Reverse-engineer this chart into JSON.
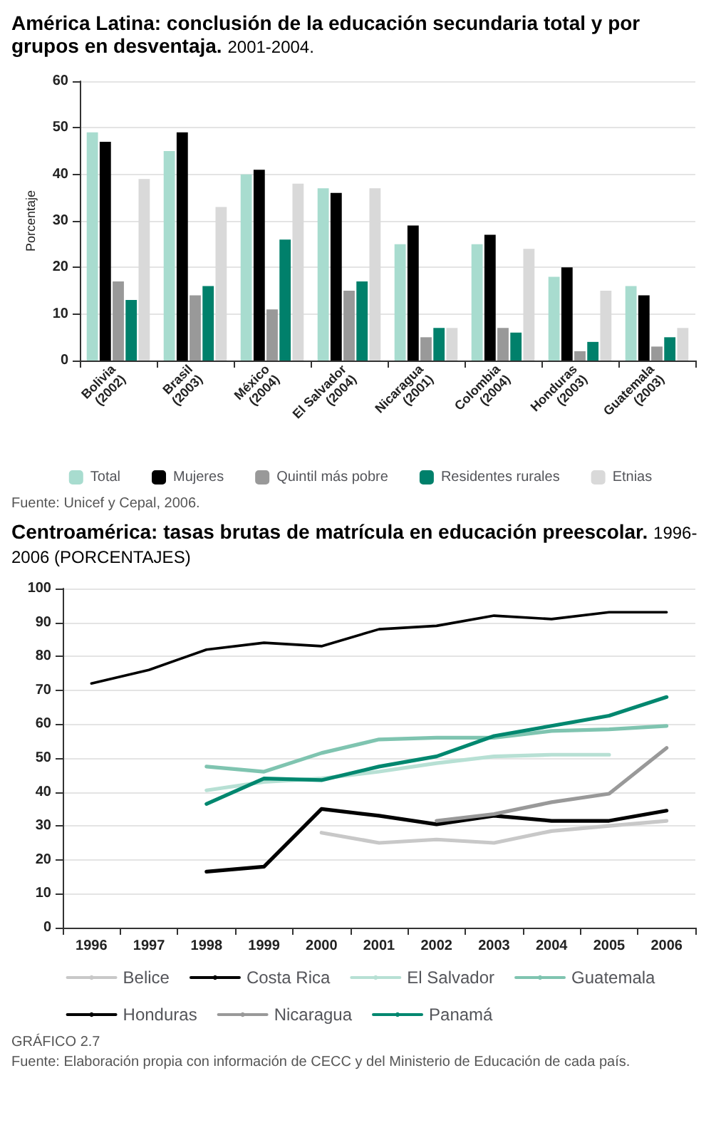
{
  "chart_data": [
    {
      "type": "bar",
      "title": "América Latina: conclusión de la educación secundaria total y por grupos en desventaja.",
      "subtitle": "2001-2004.",
      "ylabel": "Porcentaje",
      "categories": [
        "Bolivia\n(2002)",
        "Brasil\n(2003)",
        "México\n(2004)",
        "El Salvador\n(2004)",
        "Nicaragua\n(2001)",
        "Colombia\n(2004)",
        "Honduras\n(2003)",
        "Guatemala\n(2003)"
      ],
      "series": [
        {
          "name": "Total",
          "color": "#a8dccf",
          "values": [
            49,
            45,
            40,
            37,
            25,
            25,
            18,
            16
          ]
        },
        {
          "name": "Mujeres",
          "color": "#000000",
          "values": [
            47,
            49,
            41,
            36,
            29,
            27,
            20,
            14
          ]
        },
        {
          "name": "Quintil más pobre",
          "color": "#999999",
          "values": [
            17,
            14,
            11,
            15,
            5,
            7,
            2,
            3
          ]
        },
        {
          "name": "Residentes rurales",
          "color": "#00806b",
          "values": [
            13,
            16,
            26,
            17,
            7,
            6,
            4,
            5
          ]
        },
        {
          "name": "Etnias",
          "color": "#d9d9d9",
          "values": [
            39,
            33,
            38,
            37,
            7,
            24,
            15,
            7
          ]
        }
      ],
      "ylim": [
        0,
        60
      ],
      "yticks": [
        0,
        10,
        20,
        30,
        40,
        50,
        60
      ],
      "grid": "y",
      "legend": "bottom",
      "annotations": [
        "Fuente: Unicef y Cepal, 2006."
      ]
    },
    {
      "type": "line",
      "title": "Centroamérica: tasas brutas de matrícula en educación preescolar.",
      "subtitle": "1996-2006 (PORCENTAJES)",
      "categories": [
        "1996",
        "1997",
        "1998",
        "1999",
        "2000",
        "2001",
        "2002",
        "2003",
        "2004",
        "2005",
        "2006"
      ],
      "series": [
        {
          "name": "Belice",
          "color": "#c8c8c8",
          "values": [
            null,
            null,
            null,
            null,
            28,
            25,
            26,
            25,
            28.5,
            30,
            31.5
          ]
        },
        {
          "name": "Costa Rica",
          "color": "#000000",
          "values": [
            72,
            76,
            82,
            84,
            83,
            88,
            89,
            92,
            91,
            93,
            93
          ]
        },
        {
          "name": "El Salvador",
          "color": "#b7e0d4",
          "values": [
            null,
            null,
            40.5,
            43,
            44,
            46,
            48.5,
            50.5,
            51,
            51,
            null
          ]
        },
        {
          "name": "Guatemala",
          "color": "#7fc4b0",
          "values": [
            null,
            null,
            47.5,
            46,
            51.5,
            55.5,
            56,
            56,
            58,
            58.5,
            59.5
          ]
        },
        {
          "name": "Honduras",
          "color": "#000000",
          "values": [
            null,
            null,
            16.5,
            18,
            35,
            33,
            30.5,
            33,
            31.5,
            31.5,
            34.5
          ]
        },
        {
          "name": "Nicaragua",
          "color": "#999999",
          "values": [
            null,
            null,
            null,
            null,
            null,
            null,
            31.5,
            33.5,
            37,
            39.5,
            53
          ]
        },
        {
          "name": "Panamá",
          "color": "#00876f",
          "values": [
            null,
            null,
            36.5,
            44,
            43.5,
            47.5,
            50.5,
            56.5,
            59.5,
            62.5,
            68
          ]
        }
      ],
      "ylim": [
        0,
        100
      ],
      "yticks": [
        0,
        10,
        20,
        30,
        40,
        50,
        60,
        70,
        80,
        90,
        100
      ],
      "grid": "y",
      "legend": "bottom",
      "marker": "none",
      "annotations": [
        "GRÁFICO 2.7",
        "Fuente: Elaboración propia con información de CECC y del Ministerio de Educación de cada país."
      ]
    }
  ]
}
